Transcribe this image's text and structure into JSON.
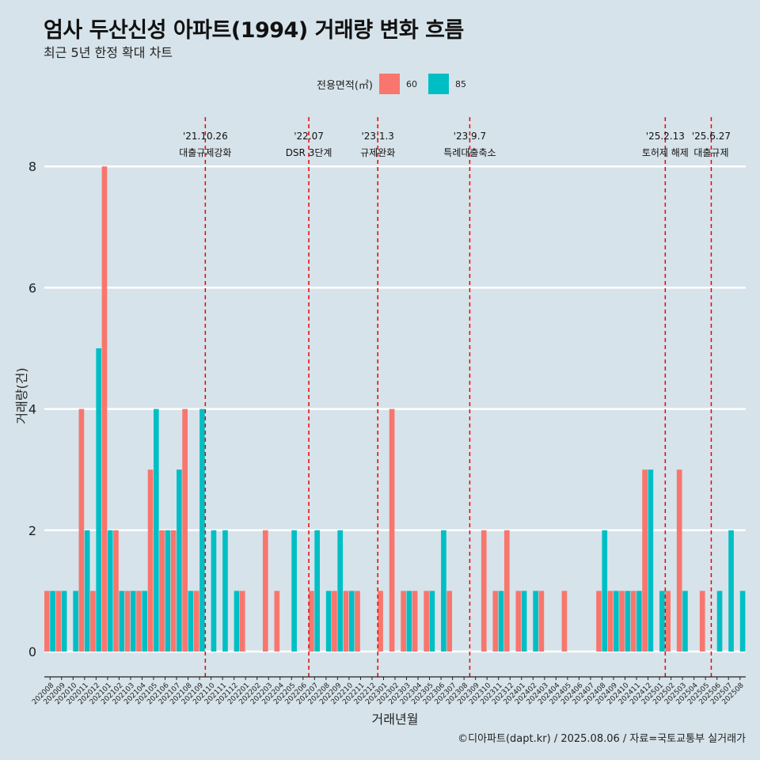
{
  "title": "엄사 두산신성 아파트(1994) 거래량 변화 흐름",
  "subtitle": "최근 5년 한정 확대 차트",
  "legend_title": "전용면적(㎡)",
  "caption": "©디아파트(dapt.kr) / 2025.08.06 / 자료=국토교통부 실거래가",
  "colors": {
    "60": "#f8766d",
    "85": "#00bfc4",
    "background": "#d6e3ea",
    "event_line": "#ee0000"
  },
  "chart_data": {
    "type": "bar",
    "xlabel": "거래년월",
    "ylabel": "거래량(건)",
    "ylim": [
      0,
      8.6
    ],
    "yticks": [
      0,
      2,
      4,
      6,
      8
    ],
    "grid": true,
    "legend_position": "top",
    "categories": [
      "202008",
      "202009",
      "202010",
      "202011",
      "202012",
      "202101",
      "202102",
      "202103",
      "202104",
      "202105",
      "202106",
      "202107",
      "202108",
      "202109",
      "202110",
      "202111",
      "202112",
      "202201",
      "202202",
      "202203",
      "202204",
      "202205",
      "202206",
      "202207",
      "202208",
      "202209",
      "202210",
      "202211",
      "202212",
      "202301",
      "202302",
      "202303",
      "202304",
      "202305",
      "202306",
      "202307",
      "202308",
      "202309",
      "202310",
      "202311",
      "202312",
      "202401",
      "202402",
      "202403",
      "202404",
      "202405",
      "202406",
      "202407",
      "202408",
      "202409",
      "202410",
      "202411",
      "202412",
      "202501",
      "202502",
      "202503",
      "202504",
      "202505",
      "202506",
      "202507",
      "202508"
    ],
    "series": [
      {
        "name": "60",
        "values": [
          1,
          1,
          0,
          4,
          1,
          8,
          2,
          1,
          1,
          3,
          2,
          2,
          4,
          1,
          0,
          0,
          0,
          1,
          0,
          2,
          1,
          0,
          0,
          1,
          0,
          1,
          1,
          1,
          0,
          1,
          4,
          1,
          1,
          1,
          0,
          1,
          0,
          0,
          2,
          1,
          2,
          1,
          0,
          1,
          0,
          1,
          0,
          0,
          1,
          1,
          1,
          1,
          3,
          0,
          1,
          3,
          0,
          1,
          0,
          0,
          0
        ]
      },
      {
        "name": "85",
        "values": [
          1,
          1,
          1,
          2,
          5,
          2,
          1,
          1,
          1,
          4,
          2,
          3,
          1,
          4,
          2,
          2,
          1,
          0,
          0,
          0,
          0,
          2,
          0,
          2,
          1,
          2,
          1,
          0,
          0,
          0,
          0,
          1,
          0,
          1,
          2,
          0,
          0,
          0,
          0,
          1,
          0,
          1,
          1,
          0,
          0,
          0,
          0,
          0,
          2,
          1,
          1,
          1,
          3,
          1,
          0,
          1,
          0,
          0,
          1,
          2,
          1
        ]
      }
    ],
    "events": [
      {
        "date": "'21.10.26",
        "label": "대출규제강화",
        "position": 14.0
      },
      {
        "date": "'22.07",
        "label": "DSR 3단계",
        "position": 23.0
      },
      {
        "date": "'23.1.3",
        "label": "규제완화",
        "position": 29.0
      },
      {
        "date": "'23.9.7",
        "label": "특례대출축소",
        "position": 37.0
      },
      {
        "date": "'25.2.13",
        "label": "토허제 해제",
        "position": 54.0
      },
      {
        "date": "'25.6.27",
        "label": "대출규제",
        "position": 58.0
      }
    ]
  }
}
